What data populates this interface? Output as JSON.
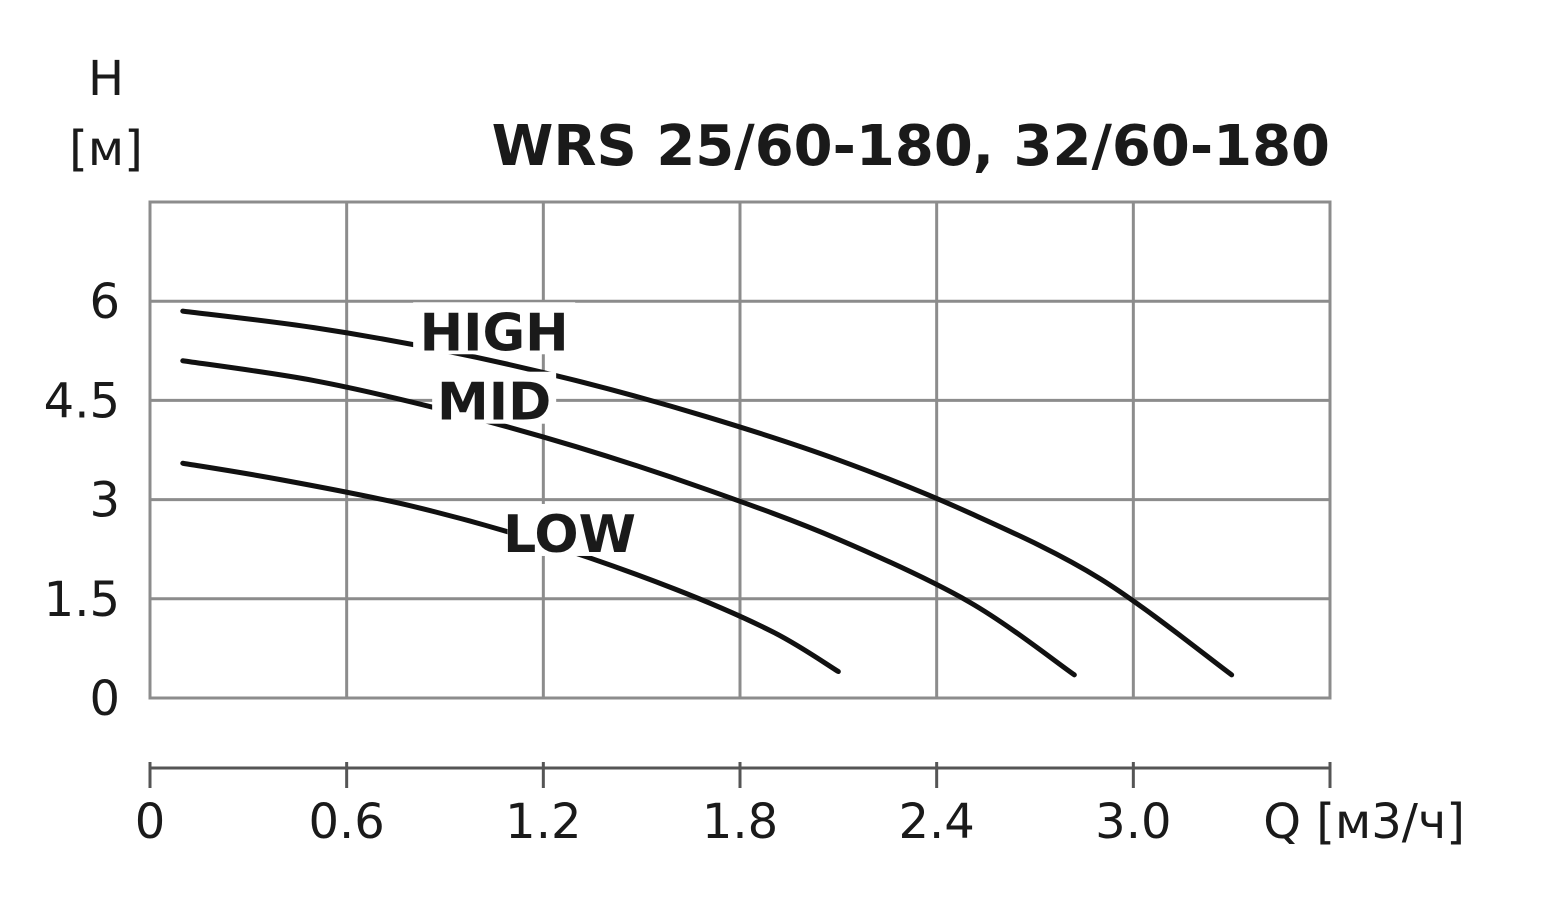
{
  "chart_data": {
    "type": "line",
    "title": "WRS 25/60-180, 32/60-180",
    "ylabel_symbol": "H",
    "ylabel_unit": "[м]",
    "xlabel": "Q [м3/ч]",
    "xlim": [
      0,
      3.6
    ],
    "ylim": [
      0,
      7.5
    ],
    "x_ticks": [
      "0",
      "0.6",
      "1.2",
      "1.8",
      "2.4",
      "3.0"
    ],
    "x_tick_values": [
      0,
      0.6,
      1.2,
      1.8,
      2.4,
      3.0
    ],
    "y_ticks": [
      "0",
      "1.5",
      "3",
      "4.5",
      "6"
    ],
    "y_tick_values": [
      0,
      1.5,
      3,
      4.5,
      6
    ],
    "grid": true,
    "series": [
      {
        "name": "HIGH",
        "x": [
          0.1,
          0.5,
          0.9,
          1.3,
          1.7,
          2.1,
          2.5,
          2.9,
          3.3
        ],
        "y": [
          5.85,
          5.6,
          5.25,
          4.8,
          4.25,
          3.6,
          2.8,
          1.8,
          0.35
        ]
      },
      {
        "name": "MID",
        "x": [
          0.1,
          0.5,
          0.9,
          1.3,
          1.7,
          2.1,
          2.5,
          2.82
        ],
        "y": [
          5.1,
          4.8,
          4.35,
          3.8,
          3.15,
          2.4,
          1.45,
          0.35
        ]
      },
      {
        "name": "LOW",
        "x": [
          0.1,
          0.4,
          0.8,
          1.2,
          1.6,
          1.9,
          2.1
        ],
        "y": [
          3.55,
          3.3,
          2.9,
          2.35,
          1.65,
          1.0,
          0.4
        ]
      }
    ]
  }
}
